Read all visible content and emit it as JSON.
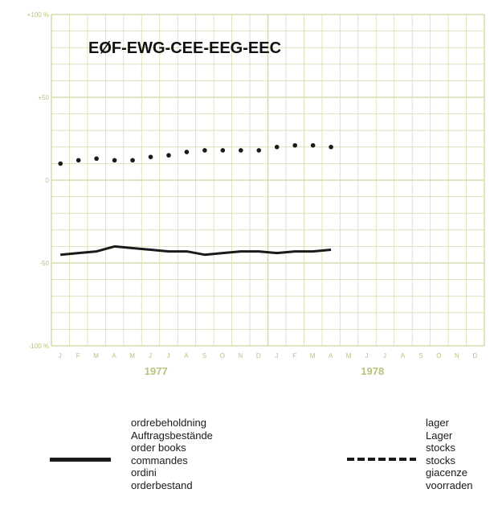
{
  "chart_data": {
    "type": "line",
    "title": "EØF-EWG-CEE-EEG-EEC",
    "y_ticks": [
      "+100 %",
      "+50",
      "0",
      "-50",
      "-100 %"
    ],
    "y_tick_values": [
      100,
      50,
      0,
      -50,
      -100
    ],
    "ylim": [
      -100,
      100
    ],
    "month_labels": [
      "J",
      "F",
      "M",
      "A",
      "M",
      "J",
      "J",
      "A",
      "S",
      "O",
      "N",
      "D",
      "J",
      "F",
      "M",
      "A",
      "M",
      "J",
      "J",
      "A",
      "S",
      "O",
      "N",
      "D"
    ],
    "year_labels": [
      "1977",
      "1978"
    ],
    "series": [
      {
        "key": "order_books",
        "style": "solid",
        "x": [
          0,
          1,
          2,
          3,
          4,
          5,
          6,
          7,
          8,
          9,
          10,
          11,
          12,
          13,
          14,
          15
        ],
        "values": [
          -45,
          -44,
          -43,
          -40,
          -41,
          -42,
          -43,
          -43,
          -45,
          -44,
          -43,
          -43,
          -44,
          -43,
          -43,
          -42
        ]
      },
      {
        "key": "stocks",
        "style": "dotted",
        "x": [
          0,
          1,
          2,
          3,
          4,
          5,
          6,
          7,
          8,
          9,
          10,
          11,
          12,
          13,
          14,
          15
        ],
        "values": [
          10,
          12,
          13,
          12,
          12,
          14,
          15,
          17,
          18,
          18,
          18,
          18,
          20,
          21,
          21,
          20
        ]
      }
    ],
    "grid": true,
    "colors": {
      "grid": "#d6deb0",
      "axis_text": "#b9c27d",
      "line": "#1a1a1a"
    }
  },
  "legend": {
    "order_books": [
      "ordrebeholdning",
      "Auftragsbestände",
      "order books",
      "commandes",
      "ordini",
      "orderbestand"
    ],
    "stocks": [
      "lager",
      "Lager",
      "stocks",
      "stocks",
      "giacenze",
      "voorraden"
    ]
  }
}
